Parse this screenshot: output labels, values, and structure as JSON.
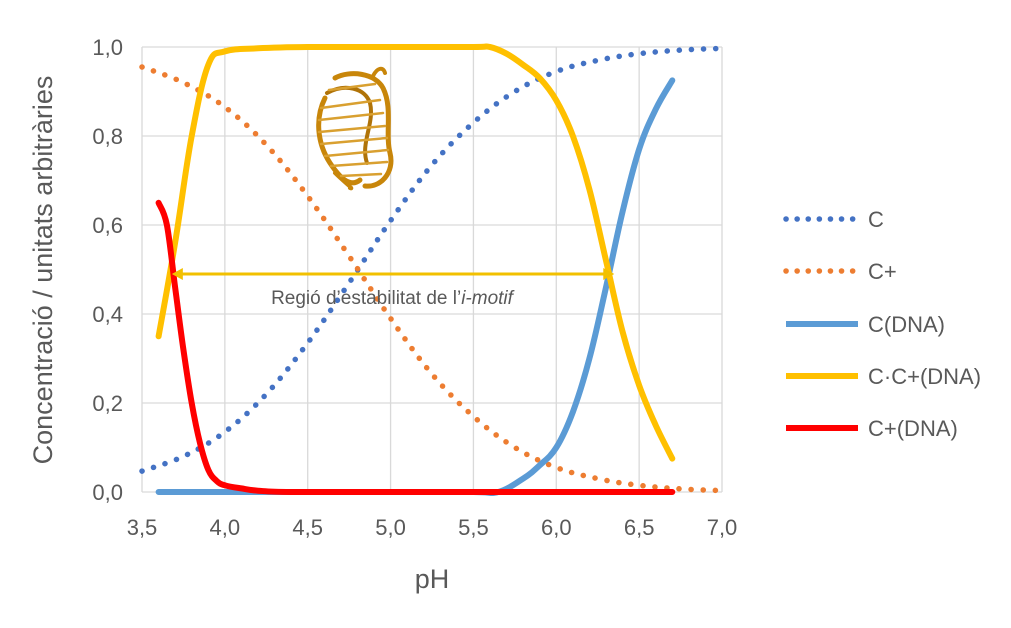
{
  "chart_data": {
    "type": "line",
    "title": "",
    "xlabel": "pH",
    "ylabel": "Concentració / unitats arbitràries",
    "xlim": [
      3.5,
      7.0
    ],
    "ylim": [
      0.0,
      1.0
    ],
    "grid": true,
    "legend_position": "right",
    "x_ticks": [
      "3,5",
      "4,0",
      "4,5",
      "5,0",
      "5,5",
      "6,0",
      "6,5",
      "7,0"
    ],
    "x_tick_values": [
      3.5,
      4.0,
      4.5,
      5.0,
      5.5,
      6.0,
      6.5,
      7.0
    ],
    "y_ticks": [
      "0,0",
      "0,2",
      "0,4",
      "0,6",
      "0,8",
      "1,0"
    ],
    "y_tick_values": [
      0.0,
      0.2,
      0.4,
      0.6,
      0.8,
      1.0
    ],
    "series": [
      {
        "name": "C",
        "color": "#4472C4",
        "style": "dotted",
        "x": [
          3.5,
          3.75,
          4.0,
          4.25,
          4.5,
          4.75,
          5.0,
          5.25,
          5.5,
          5.75,
          6.0,
          6.25,
          6.5,
          6.75,
          7.0
        ],
        "y": [
          0.047,
          0.08,
          0.135,
          0.22,
          0.335,
          0.47,
          0.61,
          0.735,
          0.83,
          0.9,
          0.945,
          0.97,
          0.985,
          0.993,
          0.997
        ]
      },
      {
        "name": "C+",
        "color": "#ED7D31",
        "style": "dotted",
        "x": [
          3.5,
          3.75,
          4.0,
          4.25,
          4.5,
          4.75,
          5.0,
          5.25,
          5.5,
          5.75,
          6.0,
          6.25,
          6.5,
          6.75,
          7.0
        ],
        "y": [
          0.955,
          0.92,
          0.865,
          0.78,
          0.665,
          0.53,
          0.39,
          0.265,
          0.17,
          0.1,
          0.055,
          0.03,
          0.015,
          0.007,
          0.003
        ]
      },
      {
        "name": "C(DNA)",
        "color": "#5B9BD5",
        "style": "solid",
        "x": [
          3.6,
          4.0,
          4.5,
          5.0,
          5.5,
          5.65,
          5.8,
          5.9,
          6.0,
          6.1,
          6.2,
          6.3,
          6.4,
          6.5,
          6.6,
          6.7
        ],
        "y": [
          0.0,
          0.0,
          0.0,
          0.0,
          0.0,
          0.0,
          0.03,
          0.06,
          0.1,
          0.18,
          0.3,
          0.46,
          0.63,
          0.77,
          0.86,
          0.925
        ]
      },
      {
        "name": "C·C+(DNA)",
        "color": "#FFC000",
        "style": "solid",
        "x": [
          3.6,
          3.7,
          3.8,
          3.9,
          4.0,
          4.2,
          4.5,
          5.0,
          5.5,
          5.6,
          5.7,
          5.8,
          5.9,
          6.0,
          6.1,
          6.2,
          6.3,
          6.4,
          6.5,
          6.6,
          6.7
        ],
        "y": [
          0.35,
          0.56,
          0.8,
          0.96,
          0.99,
          0.997,
          1.0,
          1.0,
          1.0,
          1.0,
          0.985,
          0.96,
          0.93,
          0.88,
          0.8,
          0.68,
          0.52,
          0.36,
          0.24,
          0.15,
          0.075
        ]
      },
      {
        "name": "C+(DNA)",
        "color": "#FF0000",
        "style": "solid",
        "x": [
          3.6,
          3.65,
          3.7,
          3.75,
          3.8,
          3.85,
          3.9,
          3.95,
          4.0,
          4.1,
          4.2,
          4.4,
          5.0,
          6.0,
          6.7
        ],
        "y": [
          0.65,
          0.6,
          0.46,
          0.32,
          0.2,
          0.11,
          0.05,
          0.025,
          0.015,
          0.008,
          0.003,
          0.0,
          0.0,
          0.0,
          0.0
        ]
      }
    ],
    "annotation": {
      "prefix": "Regió d’estabilitat de l’",
      "italic": "i-motif",
      "x_start": 3.68,
      "x_end": 6.35,
      "y": 0.49,
      "color": "#F2C000"
    }
  }
}
